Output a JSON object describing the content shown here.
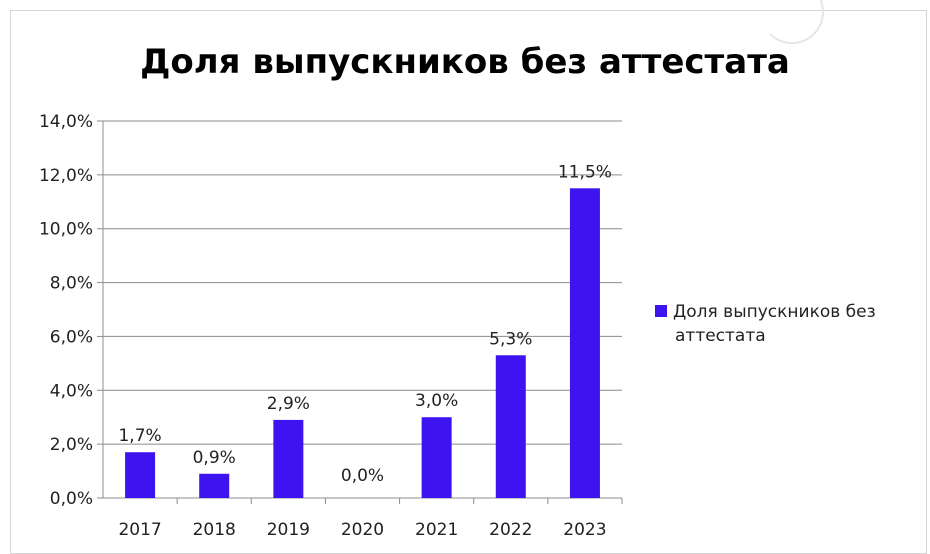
{
  "chart_data": {
    "type": "bar",
    "title": "Доля выпускников без аттестата",
    "categories": [
      "2017",
      "2018",
      "2019",
      "2020",
      "2021",
      "2022",
      "2023"
    ],
    "series": [
      {
        "name": "Доля выпускников без аттестата",
        "values": [
          1.7,
          0.9,
          2.9,
          0.0,
          3.0,
          5.3,
          11.5
        ],
        "data_labels": [
          "1,7%",
          "0,9%",
          "2,9%",
          "0,0%",
          "3,0%",
          "5,3%",
          "11,5%"
        ],
        "color": "#3d14f0"
      }
    ],
    "y_ticks": [
      "0,0%",
      "2,0%",
      "4,0%",
      "6,0%",
      "8,0%",
      "10,0%",
      "12,0%",
      "14,0%"
    ],
    "ylim": [
      0,
      14
    ],
    "xlabel": "",
    "ylabel": "",
    "grid": true,
    "legend_position": "right"
  }
}
